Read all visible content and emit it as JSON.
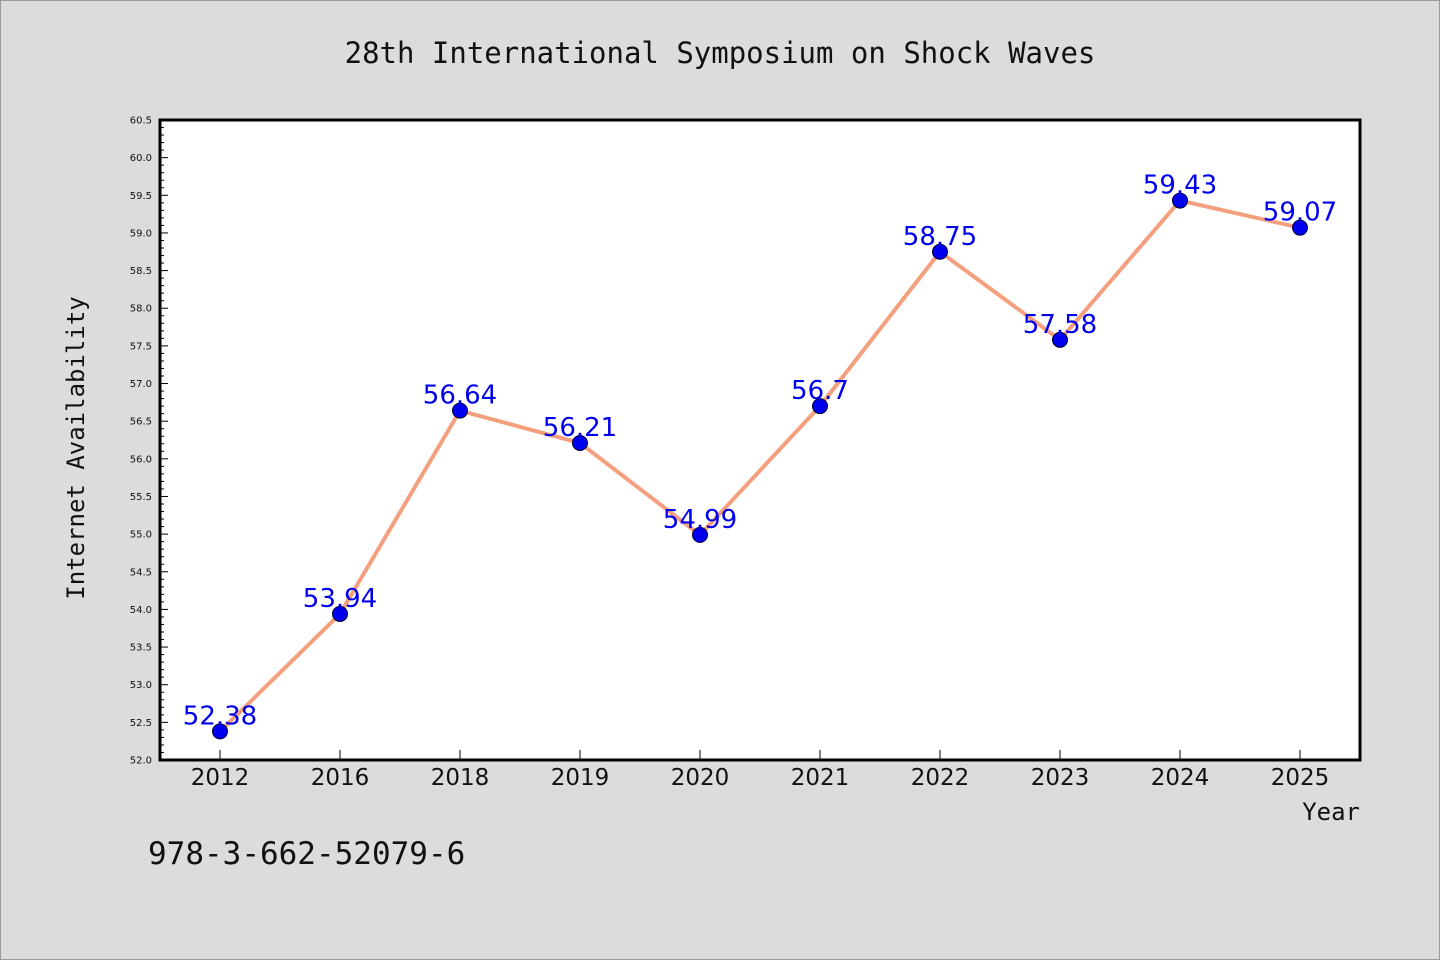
{
  "footer": {
    "isbn": "978-3-662-52079-6"
  },
  "chart_data": {
    "type": "line",
    "title": "28th International Symposium on Shock Waves",
    "xlabel": "Year",
    "ylabel": "Internet Availability",
    "categories": [
      "2012",
      "2016",
      "2018",
      "2019",
      "2020",
      "2021",
      "2022",
      "2023",
      "2024",
      "2025"
    ],
    "series": [
      {
        "values": [
          52.38,
          53.94,
          56.64,
          56.21,
          54.99,
          56.7,
          58.75,
          57.58,
          59.43,
          59.07
        ],
        "data_labels": [
          "52.38",
          "53.94",
          "56.64",
          "56.21",
          "54.99",
          "56.7",
          "58.75",
          "57.58",
          "59.43",
          "59.07"
        ],
        "line_color": "#f4a07f",
        "marker_color": "#0000ee",
        "label_color": "#0000ee"
      }
    ],
    "ylim": [
      52.0,
      60.5
    ],
    "yticks": [
      "52.0",
      "52.5",
      "53.0",
      "53.5",
      "54.0",
      "54.5",
      "55.0",
      "55.5",
      "56.0",
      "56.5",
      "57.0",
      "57.5",
      "58.0",
      "58.5",
      "59.0",
      "59.5",
      "60.0",
      "60.5"
    ],
    "grid": false,
    "legend": "none",
    "background_color": "#dcdcdc",
    "plot_background_color": "#ffffff"
  }
}
